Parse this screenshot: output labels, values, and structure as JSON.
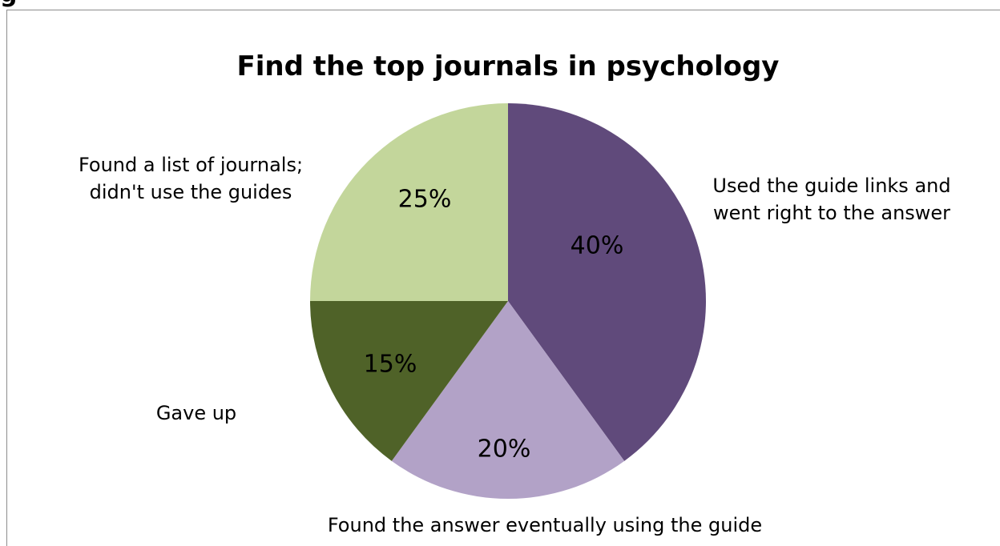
{
  "page_fragment": "g",
  "chart_data": {
    "type": "pie",
    "title": "Find the top journals in psychology",
    "slices": [
      {
        "label": "Used the guide links and went right to the answer",
        "label_lines": [
          "Used the guide links and",
          "went right to the answer"
        ],
        "value": 40,
        "display": "40%",
        "color": "#604a7b"
      },
      {
        "label": "Found the answer eventually using the guide",
        "label_lines": [
          "Found the answer eventually using the guide"
        ],
        "value": 20,
        "display": "20%",
        "color": "#b2a2c7"
      },
      {
        "label": "Gave up",
        "label_lines": [
          "Gave up"
        ],
        "value": 15,
        "display": "15%",
        "color": "#4f6228"
      },
      {
        "label": "Found a list of journals; didn't use the guides",
        "label_lines": [
          "Found a list of journals;",
          "didn't use the guides"
        ],
        "value": 25,
        "display": "25%",
        "color": "#c3d69b"
      }
    ],
    "start_angle": "12 o'clock",
    "direction": "clockwise",
    "legend": "none (category labels outside slices)"
  }
}
